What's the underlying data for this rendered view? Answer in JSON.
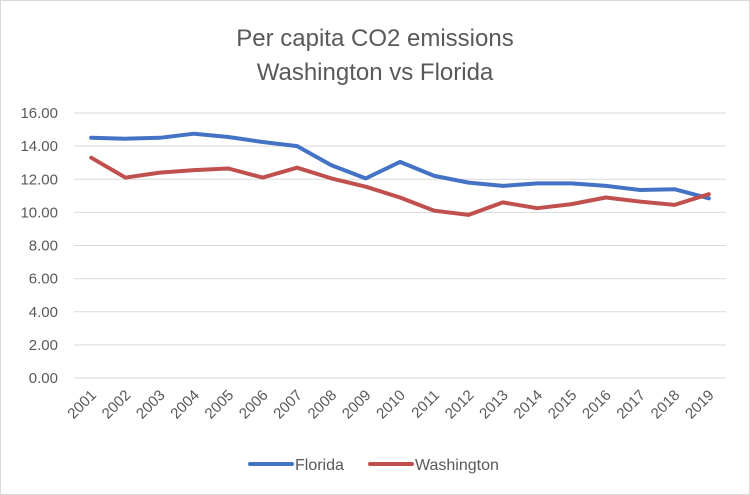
{
  "chart_data": {
    "type": "line",
    "title": [
      "Per capita CO2 emissions",
      "Washington vs Florida"
    ],
    "xlabel": "",
    "ylabel": "",
    "categories": [
      "2001",
      "2002",
      "2003",
      "2004",
      "2005",
      "2006",
      "2007",
      "2008",
      "2009",
      "2010",
      "2011",
      "2012",
      "2013",
      "2014",
      "2015",
      "2016",
      "2017",
      "2018",
      "2019"
    ],
    "ylim": [
      0,
      16
    ],
    "yticks": [
      0,
      2,
      4,
      6,
      8,
      10,
      12,
      14,
      16
    ],
    "ytick_labels": [
      "0.00",
      "2.00",
      "4.00",
      "6.00",
      "8.00",
      "10.00",
      "12.00",
      "14.00",
      "16.00"
    ],
    "grid": true,
    "legend_position": "bottom",
    "series": [
      {
        "name": "Florida",
        "color": "#4472c4",
        "values": [
          14.5,
          14.45,
          14.5,
          14.75,
          14.55,
          14.25,
          14.0,
          12.85,
          12.05,
          13.05,
          12.2,
          11.8,
          11.6,
          11.75,
          11.75,
          11.6,
          11.35,
          11.4,
          10.85
        ]
      },
      {
        "name": "Washington",
        "color": "#c0504d",
        "values": [
          13.3,
          12.1,
          12.4,
          12.55,
          12.65,
          12.1,
          12.7,
          12.05,
          11.55,
          10.9,
          10.1,
          9.85,
          10.6,
          10.25,
          10.5,
          10.9,
          10.65,
          10.45,
          11.1
        ]
      }
    ]
  }
}
